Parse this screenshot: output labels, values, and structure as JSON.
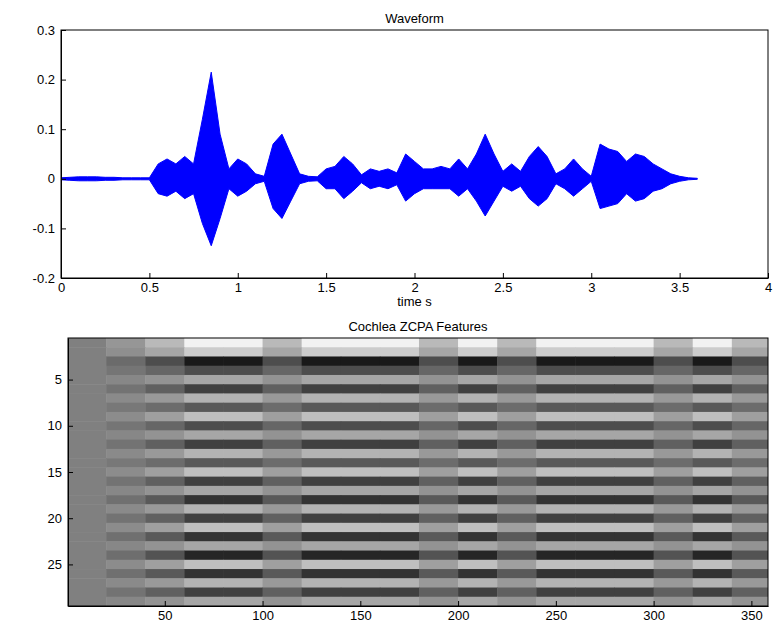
{
  "chart_data": [
    {
      "type": "area",
      "title": "Waveform",
      "x_label": "time s",
      "color": "#0000ff",
      "xlim": [
        0,
        4
      ],
      "xticks": [
        0,
        0.5,
        1,
        1.5,
        2,
        2.5,
        3,
        3.5,
        4
      ],
      "ylim": [
        -0.2,
        0.3
      ],
      "yticks": [
        -0.2,
        -0.1,
        0,
        0.1,
        0.2,
        0.3
      ],
      "x": [
        0,
        0.05,
        0.1,
        0.15,
        0.2,
        0.25,
        0.3,
        0.35,
        0.4,
        0.45,
        0.5,
        0.55,
        0.6,
        0.65,
        0.7,
        0.75,
        0.8,
        0.85,
        0.9,
        0.95,
        1,
        1.05,
        1.1,
        1.15,
        1.2,
        1.25,
        1.3,
        1.35,
        1.4,
        1.45,
        1.5,
        1.55,
        1.6,
        1.65,
        1.7,
        1.75,
        1.8,
        1.85,
        1.9,
        1.95,
        2,
        2.05,
        2.1,
        2.15,
        2.2,
        2.25,
        2.3,
        2.35,
        2.4,
        2.45,
        2.5,
        2.55,
        2.6,
        2.65,
        2.7,
        2.75,
        2.8,
        2.85,
        2.9,
        2.95,
        3,
        3.05,
        3.1,
        3.15,
        3.2,
        3.25,
        3.3,
        3.35,
        3.4,
        3.45,
        3.5,
        3.55,
        3.6
      ],
      "values_max": [
        0.002,
        0.003,
        0.004,
        0.004,
        0.004,
        0.003,
        0.003,
        0.002,
        0.002,
        0.002,
        0.002,
        0.03,
        0.04,
        0.03,
        0.045,
        0.03,
        0.12,
        0.215,
        0.09,
        0.02,
        0.04,
        0.03,
        0.01,
        0.005,
        0.07,
        0.09,
        0.05,
        0.01,
        0.005,
        0.004,
        0.02,
        0.025,
        0.045,
        0.03,
        0.008,
        0.02,
        0.015,
        0.02,
        0.012,
        0.05,
        0.035,
        0.02,
        0.02,
        0.025,
        0.02,
        0.04,
        0.02,
        0.05,
        0.09,
        0.05,
        0.015,
        0.03,
        0.015,
        0.045,
        0.065,
        0.045,
        0.01,
        0.02,
        0.04,
        0.02,
        0.005,
        0.07,
        0.06,
        0.055,
        0.035,
        0.05,
        0.045,
        0.03,
        0.02,
        0.01,
        0.005,
        0.002,
        0.001
      ],
      "values_min": [
        -0.002,
        -0.003,
        -0.004,
        -0.004,
        -0.004,
        -0.003,
        -0.003,
        -0.002,
        -0.002,
        -0.002,
        -0.002,
        -0.03,
        -0.035,
        -0.025,
        -0.04,
        -0.03,
        -0.09,
        -0.135,
        -0.08,
        -0.02,
        -0.035,
        -0.025,
        -0.01,
        -0.005,
        -0.06,
        -0.08,
        -0.045,
        -0.01,
        -0.005,
        -0.004,
        -0.02,
        -0.02,
        -0.04,
        -0.025,
        -0.008,
        -0.02,
        -0.015,
        -0.02,
        -0.012,
        -0.045,
        -0.03,
        -0.02,
        -0.02,
        -0.02,
        -0.02,
        -0.035,
        -0.02,
        -0.045,
        -0.075,
        -0.045,
        -0.015,
        -0.025,
        -0.015,
        -0.04,
        -0.055,
        -0.04,
        -0.01,
        -0.02,
        -0.035,
        -0.02,
        -0.005,
        -0.06,
        -0.055,
        -0.05,
        -0.03,
        -0.045,
        -0.04,
        -0.025,
        -0.02,
        -0.01,
        -0.005,
        -0.002,
        -0.001
      ]
    },
    {
      "type": "heatmap",
      "title": "Cochlea ZCPA Features",
      "color": "gray",
      "xlim": [
        0.5,
        358.5
      ],
      "xticks": [
        50,
        100,
        150,
        200,
        250,
        300,
        350
      ],
      "ylim": [
        0.5,
        29.5
      ],
      "yticks": [
        5,
        10,
        15,
        20,
        25
      ],
      "clim": [
        -1,
        1
      ],
      "x_edges": [
        0.5,
        20,
        40,
        60,
        80,
        100,
        120,
        140,
        160,
        180,
        200,
        220,
        240,
        260,
        280,
        300,
        320,
        340,
        358.5
      ],
      "y_edges": [
        0.5,
        1.5,
        2.5,
        3.5,
        4.5,
        5.5,
        6.5,
        7.5,
        8.5,
        9.5,
        10.5,
        11.5,
        12.5,
        13.5,
        14.5,
        15.5,
        16.5,
        17.5,
        18.5,
        19.5,
        20.5,
        21.5,
        22.5,
        23.5,
        24.5,
        25.5,
        26.5,
        27.5,
        28.5,
        29.5
      ],
      "cells": [
        [
          0,
          0.18,
          0.45,
          0.9,
          0.9,
          0.45,
          0.9,
          0.9,
          0.9,
          0.45,
          0.9,
          0.45,
          0.9,
          0.9,
          0.9,
          0.45,
          0.9,
          0.45
        ],
        [
          0,
          0.12,
          0.3,
          0.6,
          0.6,
          0.3,
          0.6,
          0.6,
          0.6,
          0.3,
          0.6,
          0.3,
          0.6,
          0.6,
          0.6,
          0.3,
          0.6,
          0.3
        ],
        [
          0,
          -0.16,
          -0.4,
          -0.8,
          -0.8,
          -0.4,
          -0.8,
          -0.8,
          -0.8,
          -0.4,
          -0.8,
          -0.4,
          -0.8,
          -0.8,
          -0.8,
          -0.4,
          -0.8,
          -0.4
        ],
        [
          0,
          -0.08,
          -0.2,
          -0.4,
          -0.4,
          -0.2,
          -0.4,
          -0.4,
          -0.4,
          -0.2,
          -0.4,
          -0.2,
          -0.4,
          -0.4,
          -0.4,
          -0.2,
          -0.4,
          -0.2
        ],
        [
          0,
          0.06,
          0.15,
          0.3,
          0.3,
          0.15,
          0.3,
          0.3,
          0.3,
          0.15,
          0.3,
          0.15,
          0.3,
          0.3,
          0.3,
          0.15,
          0.3,
          0.15
        ],
        [
          0,
          -0.1,
          -0.25,
          -0.5,
          -0.5,
          -0.25,
          -0.5,
          -0.5,
          -0.5,
          -0.25,
          -0.5,
          -0.25,
          -0.5,
          -0.5,
          -0.5,
          -0.25,
          -0.5,
          -0.25
        ],
        [
          0,
          0.08,
          0.2,
          0.4,
          0.4,
          0.2,
          0.4,
          0.4,
          0.4,
          0.2,
          0.4,
          0.2,
          0.4,
          0.4,
          0.4,
          0.2,
          0.4,
          0.2
        ],
        [
          0,
          -0.06,
          -0.15,
          -0.3,
          -0.3,
          -0.15,
          -0.3,
          -0.3,
          -0.3,
          -0.15,
          -0.3,
          -0.15,
          -0.3,
          -0.3,
          -0.3,
          -0.15,
          -0.3,
          -0.15
        ],
        [
          0,
          0.1,
          0.25,
          0.5,
          0.5,
          0.25,
          0.5,
          0.5,
          0.5,
          0.25,
          0.5,
          0.25,
          0.5,
          0.5,
          0.5,
          0.25,
          0.5,
          0.25
        ],
        [
          0,
          -0.08,
          -0.2,
          -0.4,
          -0.4,
          -0.2,
          -0.4,
          -0.4,
          -0.4,
          -0.2,
          -0.4,
          -0.2,
          -0.4,
          -0.4,
          -0.4,
          -0.2,
          -0.4,
          -0.2
        ],
        [
          0,
          0.06,
          0.15,
          0.3,
          0.3,
          0.15,
          0.3,
          0.3,
          0.3,
          0.15,
          0.3,
          0.15,
          0.3,
          0.3,
          0.3,
          0.15,
          0.3,
          0.15
        ],
        [
          0,
          -0.1,
          -0.25,
          -0.5,
          -0.5,
          -0.25,
          -0.5,
          -0.5,
          -0.5,
          -0.25,
          -0.5,
          -0.25,
          -0.5,
          -0.5,
          -0.5,
          -0.25,
          -0.5,
          -0.25
        ],
        [
          0,
          0.08,
          0.2,
          0.4,
          0.4,
          0.2,
          0.4,
          0.4,
          0.4,
          0.2,
          0.4,
          0.2,
          0.4,
          0.4,
          0.4,
          0.2,
          0.4,
          0.2
        ],
        [
          0,
          -0.06,
          -0.15,
          -0.3,
          -0.3,
          -0.15,
          -0.3,
          -0.3,
          -0.3,
          -0.15,
          -0.3,
          -0.15,
          -0.3,
          -0.3,
          -0.3,
          -0.15,
          -0.3,
          -0.15
        ],
        [
          0,
          0.1,
          0.25,
          0.5,
          0.5,
          0.25,
          0.5,
          0.5,
          0.5,
          0.25,
          0.5,
          0.25,
          0.5,
          0.5,
          0.5,
          0.25,
          0.5,
          0.25
        ],
        [
          0,
          -0.1,
          -0.25,
          -0.5,
          -0.5,
          -0.25,
          -0.5,
          -0.5,
          -0.5,
          -0.25,
          -0.5,
          -0.25,
          -0.5,
          -0.5,
          -0.5,
          -0.25,
          -0.5,
          -0.25
        ],
        [
          0,
          0.06,
          0.15,
          0.3,
          0.3,
          0.15,
          0.3,
          0.3,
          0.3,
          0.15,
          0.3,
          0.15,
          0.3,
          0.3,
          0.3,
          0.15,
          0.3,
          0.15
        ],
        [
          0,
          -0.12,
          -0.3,
          -0.6,
          -0.6,
          -0.3,
          -0.6,
          -0.6,
          -0.6,
          -0.3,
          -0.6,
          -0.3,
          -0.6,
          -0.6,
          -0.6,
          -0.3,
          -0.6,
          -0.3
        ],
        [
          0,
          0.08,
          0.2,
          0.4,
          0.4,
          0.2,
          0.4,
          0.4,
          0.4,
          0.2,
          0.4,
          0.2,
          0.4,
          0.4,
          0.4,
          0.2,
          0.4,
          0.2
        ],
        [
          0,
          -0.1,
          -0.25,
          -0.5,
          -0.5,
          -0.25,
          -0.5,
          -0.5,
          -0.5,
          -0.25,
          -0.5,
          -0.25,
          -0.5,
          -0.5,
          -0.5,
          -0.25,
          -0.5,
          -0.25
        ],
        [
          0,
          0.1,
          0.25,
          0.5,
          0.5,
          0.25,
          0.5,
          0.5,
          0.5,
          0.25,
          0.5,
          0.25,
          0.5,
          0.5,
          0.5,
          0.25,
          0.5,
          0.25
        ],
        [
          0,
          -0.12,
          -0.3,
          -0.6,
          -0.6,
          -0.3,
          -0.6,
          -0.6,
          -0.6,
          -0.3,
          -0.6,
          -0.3,
          -0.6,
          -0.6,
          -0.6,
          -0.3,
          -0.6,
          -0.3
        ],
        [
          0,
          0.06,
          0.15,
          0.3,
          0.3,
          0.15,
          0.3,
          0.3,
          0.3,
          0.15,
          0.3,
          0.15,
          0.3,
          0.3,
          0.3,
          0.15,
          0.3,
          0.15
        ],
        [
          0,
          -0.14,
          -0.35,
          -0.7,
          -0.7,
          -0.35,
          -0.7,
          -0.7,
          -0.7,
          -0.35,
          -0.7,
          -0.35,
          -0.7,
          -0.7,
          -0.7,
          -0.35,
          -0.7,
          -0.35
        ],
        [
          0,
          0.1,
          0.25,
          0.5,
          0.5,
          0.25,
          0.5,
          0.5,
          0.5,
          0.25,
          0.5,
          0.25,
          0.5,
          0.5,
          0.5,
          0.25,
          0.5,
          0.25
        ],
        [
          0,
          -0.12,
          -0.3,
          -0.6,
          -0.6,
          -0.3,
          -0.6,
          -0.6,
          -0.6,
          -0.3,
          -0.6,
          -0.3,
          -0.6,
          -0.6,
          -0.6,
          -0.3,
          -0.6,
          -0.3
        ],
        [
          0,
          0.08,
          0.2,
          0.4,
          0.4,
          0.2,
          0.4,
          0.4,
          0.4,
          0.2,
          0.4,
          0.2,
          0.4,
          0.4,
          0.4,
          0.2,
          0.4,
          0.2
        ],
        [
          0,
          -0.1,
          -0.25,
          -0.5,
          -0.5,
          -0.25,
          -0.5,
          -0.5,
          -0.5,
          -0.25,
          -0.5,
          -0.25,
          -0.5,
          -0.5,
          -0.5,
          -0.25,
          -0.5,
          -0.25
        ],
        [
          0,
          0.06,
          0.15,
          0.3,
          0.3,
          0.15,
          0.3,
          0.3,
          0.3,
          0.15,
          0.3,
          0.15,
          0.3,
          0.3,
          0.3,
          0.15,
          0.3,
          0.15
        ]
      ]
    }
  ]
}
